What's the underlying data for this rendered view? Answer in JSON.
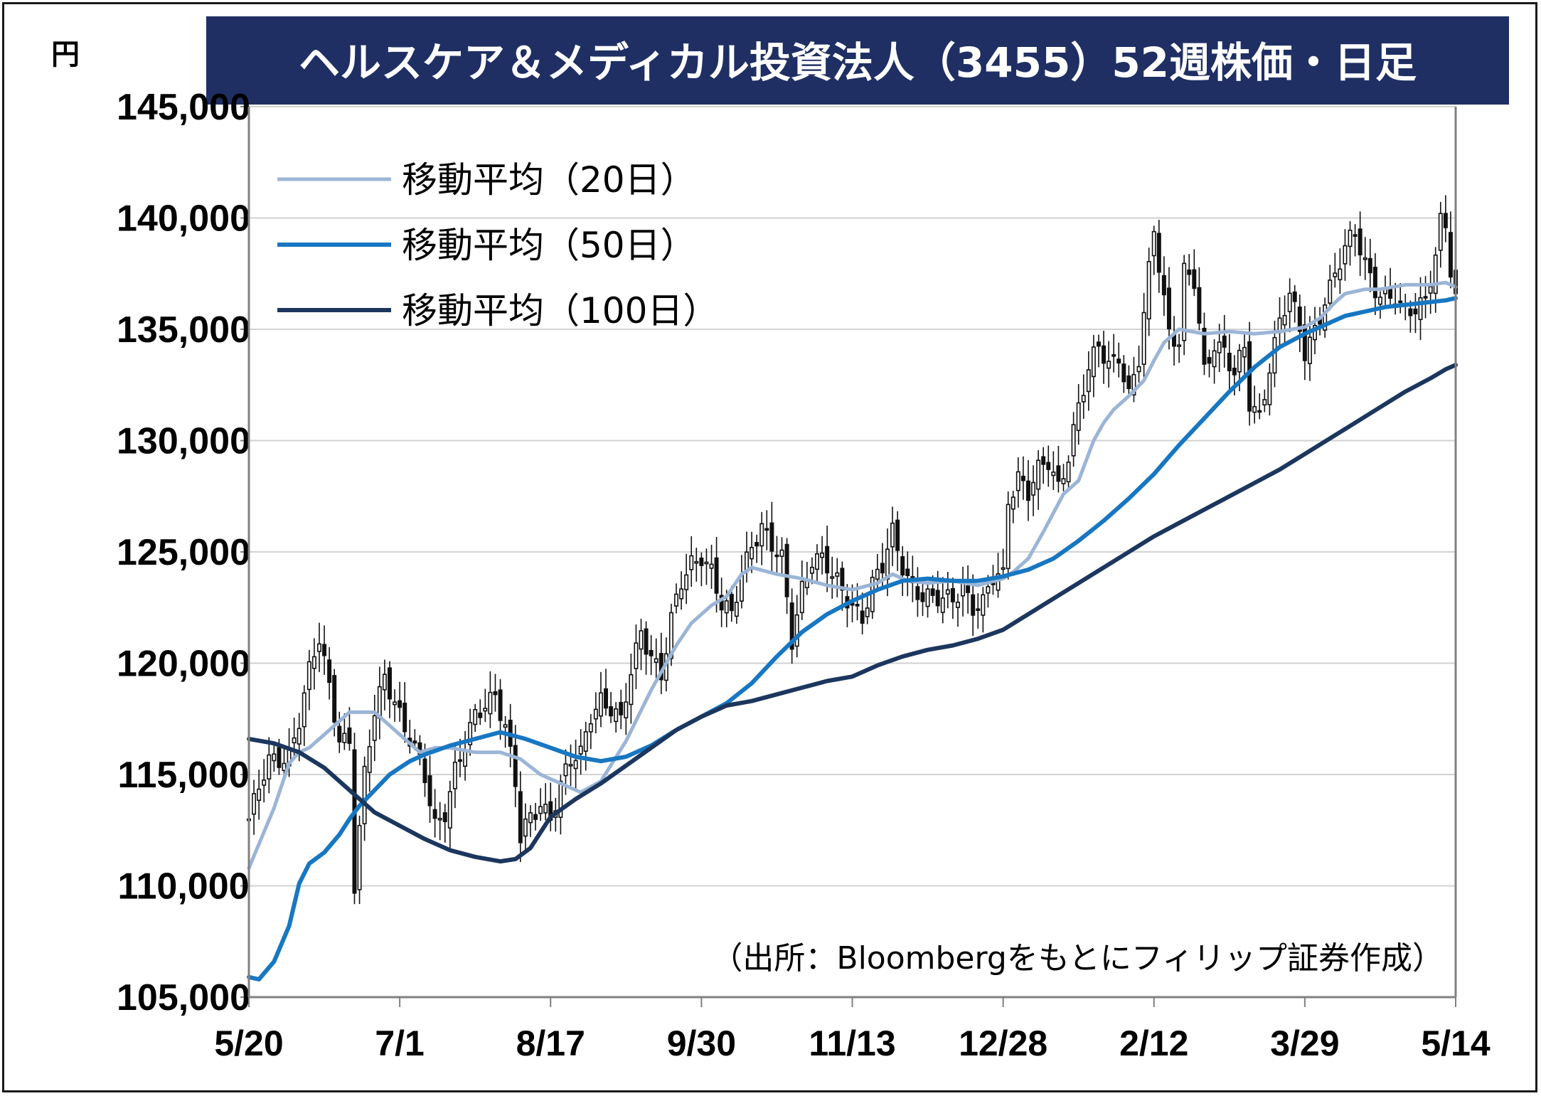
{
  "chart_data": {
    "type": "line",
    "title": "ヘルスケア＆メディカル投資法人（3455）52週株価・日足",
    "y_unit": "円",
    "ylim": [
      105000,
      145000
    ],
    "yticks": [
      {
        "v": 145000,
        "label": "145,000"
      },
      {
        "v": 140000,
        "label": "140,000"
      },
      {
        "v": 135000,
        "label": "135,000"
      },
      {
        "v": 130000,
        "label": "130,000"
      },
      {
        "v": 125000,
        "label": "125,000"
      },
      {
        "v": 120000,
        "label": "120,000"
      },
      {
        "v": 115000,
        "label": "115,000"
      },
      {
        "v": 110000,
        "label": "110,000"
      },
      {
        "v": 105000,
        "label": "105,000"
      }
    ],
    "x_count": 240,
    "xticks": [
      {
        "i": 0,
        "label": "5/20"
      },
      {
        "i": 30,
        "label": "7/1"
      },
      {
        "i": 60,
        "label": "8/17"
      },
      {
        "i": 90,
        "label": "9/30"
      },
      {
        "i": 120,
        "label": "11/13"
      },
      {
        "i": 150,
        "label": "12/28"
      },
      {
        "i": 180,
        "label": "2/12"
      },
      {
        "i": 210,
        "label": "3/29"
      },
      {
        "i": 240,
        "label": "5/14"
      }
    ],
    "grid": true,
    "legend_position": "top-left",
    "source": "（出所：Bloombergをもとにフィリップ証券作成）",
    "price_keypoints": [
      [
        0,
        113000
      ],
      [
        4,
        115500
      ],
      [
        8,
        116000
      ],
      [
        10,
        117500
      ],
      [
        12,
        119500
      ],
      [
        14,
        121000
      ],
      [
        16,
        119000
      ],
      [
        18,
        116800
      ],
      [
        20,
        116500
      ],
      [
        21,
        110000
      ],
      [
        23,
        114800
      ],
      [
        25,
        117800
      ],
      [
        27,
        119500
      ],
      [
        29,
        118500
      ],
      [
        31,
        117000
      ],
      [
        33,
        116000
      ],
      [
        35,
        114800
      ],
      [
        37,
        112800
      ],
      [
        39,
        113500
      ],
      [
        41,
        115200
      ],
      [
        43,
        116200
      ],
      [
        45,
        117500
      ],
      [
        47,
        118200
      ],
      [
        49,
        118800
      ],
      [
        51,
        117200
      ],
      [
        53,
        114500
      ],
      [
        54,
        112000
      ],
      [
        56,
        113000
      ],
      [
        58,
        113800
      ],
      [
        60,
        113200
      ],
      [
        62,
        114500
      ],
      [
        64,
        115500
      ],
      [
        66,
        115800
      ],
      [
        68,
        117800
      ],
      [
        70,
        118500
      ],
      [
        72,
        118000
      ],
      [
        74,
        117200
      ],
      [
        76,
        119500
      ],
      [
        78,
        121500
      ],
      [
        80,
        120500
      ],
      [
        82,
        119500
      ],
      [
        84,
        121800
      ],
      [
        86,
        123500
      ],
      [
        88,
        124500
      ],
      [
        90,
        125000
      ],
      [
        92,
        124200
      ],
      [
        94,
        122500
      ],
      [
        96,
        122000
      ],
      [
        98,
        124000
      ],
      [
        100,
        125500
      ],
      [
        102,
        126200
      ],
      [
        104,
        125200
      ],
      [
        106,
        124500
      ],
      [
        108,
        121000
      ],
      [
        110,
        123500
      ],
      [
        112,
        124800
      ],
      [
        114,
        124600
      ],
      [
        116,
        123800
      ],
      [
        118,
        123200
      ],
      [
        120,
        122700
      ],
      [
        122,
        122200
      ],
      [
        124,
        123500
      ],
      [
        126,
        124200
      ],
      [
        128,
        125800
      ],
      [
        130,
        124500
      ],
      [
        132,
        123500
      ],
      [
        134,
        123000
      ],
      [
        136,
        122700
      ],
      [
        138,
        122800
      ],
      [
        140,
        123000
      ],
      [
        142,
        123600
      ],
      [
        144,
        122500
      ],
      [
        146,
        122500
      ],
      [
        148,
        123800
      ],
      [
        150,
        124000
      ],
      [
        151,
        127500
      ],
      [
        153,
        128500
      ],
      [
        155,
        127600
      ],
      [
        157,
        128500
      ],
      [
        159,
        129000
      ],
      [
        161,
        128000
      ],
      [
        163,
        129500
      ],
      [
        165,
        131500
      ],
      [
        167,
        133000
      ],
      [
        169,
        134200
      ],
      [
        171,
        133500
      ],
      [
        173,
        134000
      ],
      [
        175,
        132000
      ],
      [
        177,
        133500
      ],
      [
        179,
        137500
      ],
      [
        180,
        139500
      ],
      [
        181,
        138000
      ],
      [
        183,
        135000
      ],
      [
        185,
        134500
      ],
      [
        186,
        137500
      ],
      [
        188,
        137000
      ],
      [
        190,
        133000
      ],
      [
        192,
        134500
      ],
      [
        194,
        134200
      ],
      [
        196,
        133000
      ],
      [
        198,
        134000
      ],
      [
        199,
        131500
      ],
      [
        201,
        131000
      ],
      [
        203,
        133500
      ],
      [
        205,
        135500
      ],
      [
        207,
        136500
      ],
      [
        209,
        134800
      ],
      [
        210,
        133800
      ],
      [
        212,
        135000
      ],
      [
        214,
        136500
      ],
      [
        216,
        137500
      ],
      [
        218,
        138500
      ],
      [
        220,
        139200
      ],
      [
        222,
        138000
      ],
      [
        224,
        137000
      ],
      [
        226,
        136500
      ],
      [
        228,
        136200
      ],
      [
        230,
        135500
      ],
      [
        232,
        136000
      ],
      [
        234,
        136500
      ],
      [
        236,
        138500
      ],
      [
        237,
        139800
      ],
      [
        238,
        139500
      ],
      [
        239,
        137500
      ],
      [
        240,
        136200
      ]
    ],
    "series": [
      {
        "name": "移動平均（20日）",
        "color": "#9bb5d6",
        "width": 5,
        "period": 20,
        "points": [
          [
            0,
            110800
          ],
          [
            5,
            113500
          ],
          [
            8,
            115500
          ],
          [
            10,
            116000
          ],
          [
            12,
            116200
          ],
          [
            15,
            116800
          ],
          [
            20,
            117800
          ],
          [
            25,
            117800
          ],
          [
            30,
            116800
          ],
          [
            34,
            116000
          ],
          [
            37,
            116200
          ],
          [
            40,
            116200
          ],
          [
            45,
            116000
          ],
          [
            50,
            116000
          ],
          [
            54,
            115700
          ],
          [
            58,
            115000
          ],
          [
            62,
            114600
          ],
          [
            66,
            114200
          ],
          [
            70,
            114700
          ],
          [
            75,
            116500
          ],
          [
            80,
            118800
          ],
          [
            85,
            120800
          ],
          [
            88,
            121800
          ],
          [
            90,
            122200
          ],
          [
            92,
            122600
          ],
          [
            95,
            123000
          ],
          [
            98,
            124000
          ],
          [
            100,
            124300
          ],
          [
            105,
            124000
          ],
          [
            110,
            123800
          ],
          [
            115,
            123500
          ],
          [
            120,
            123300
          ],
          [
            125,
            123600
          ],
          [
            128,
            124000
          ],
          [
            131,
            123700
          ],
          [
            135,
            123600
          ],
          [
            140,
            123700
          ],
          [
            145,
            123500
          ],
          [
            150,
            123800
          ],
          [
            152,
            124100
          ],
          [
            155,
            124700
          ],
          [
            158,
            125900
          ],
          [
            162,
            127600
          ],
          [
            165,
            128200
          ],
          [
            168,
            130000
          ],
          [
            170,
            130800
          ],
          [
            172,
            131400
          ],
          [
            175,
            132000
          ],
          [
            178,
            132700
          ],
          [
            180,
            133600
          ],
          [
            182,
            134400
          ],
          [
            185,
            135000
          ],
          [
            190,
            134800
          ],
          [
            195,
            134900
          ],
          [
            200,
            134800
          ],
          [
            205,
            134900
          ],
          [
            210,
            135100
          ],
          [
            213,
            135500
          ],
          [
            216,
            136200
          ],
          [
            218,
            136600
          ],
          [
            222,
            136800
          ],
          [
            225,
            136800
          ],
          [
            230,
            137000
          ],
          [
            235,
            137000
          ],
          [
            238,
            137100
          ],
          [
            240,
            136900
          ]
        ]
      },
      {
        "name": "移動平均（50日）",
        "color": "#1777c2",
        "width": 6,
        "period": 50,
        "points": [
          [
            0,
            105900
          ],
          [
            2,
            105800
          ],
          [
            5,
            106600
          ],
          [
            8,
            108200
          ],
          [
            10,
            110100
          ],
          [
            12,
            111000
          ],
          [
            15,
            111500
          ],
          [
            18,
            112300
          ],
          [
            20,
            113000
          ],
          [
            22,
            113600
          ],
          [
            25,
            114300
          ],
          [
            28,
            115000
          ],
          [
            30,
            115300
          ],
          [
            32,
            115600
          ],
          [
            35,
            115900
          ],
          [
            40,
            116300
          ],
          [
            45,
            116600
          ],
          [
            50,
            116900
          ],
          [
            55,
            116600
          ],
          [
            60,
            116200
          ],
          [
            65,
            115800
          ],
          [
            70,
            115600
          ],
          [
            75,
            115800
          ],
          [
            80,
            116300
          ],
          [
            85,
            117000
          ],
          [
            90,
            117600
          ],
          [
            95,
            118200
          ],
          [
            100,
            119100
          ],
          [
            105,
            120300
          ],
          [
            110,
            121400
          ],
          [
            115,
            122200
          ],
          [
            120,
            122800
          ],
          [
            125,
            123300
          ],
          [
            130,
            123700
          ],
          [
            135,
            123800
          ],
          [
            140,
            123700
          ],
          [
            145,
            123700
          ],
          [
            150,
            123900
          ],
          [
            155,
            124200
          ],
          [
            160,
            124700
          ],
          [
            165,
            125500
          ],
          [
            170,
            126400
          ],
          [
            175,
            127400
          ],
          [
            180,
            128500
          ],
          [
            185,
            129800
          ],
          [
            190,
            131000
          ],
          [
            195,
            132200
          ],
          [
            200,
            133300
          ],
          [
            205,
            134200
          ],
          [
            210,
            134800
          ],
          [
            213,
            135100
          ],
          [
            215,
            135300
          ],
          [
            218,
            135600
          ],
          [
            222,
            135800
          ],
          [
            226,
            136000
          ],
          [
            230,
            136100
          ],
          [
            234,
            136200
          ],
          [
            238,
            136300
          ],
          [
            240,
            136400
          ]
        ]
      },
      {
        "name": "移動平均（100日）",
        "color": "#1c365e",
        "width": 6,
        "period": 100,
        "points": [
          [
            0,
            116600
          ],
          [
            5,
            116400
          ],
          [
            10,
            116000
          ],
          [
            15,
            115300
          ],
          [
            20,
            114300
          ],
          [
            25,
            113300
          ],
          [
            30,
            112700
          ],
          [
            35,
            112100
          ],
          [
            40,
            111600
          ],
          [
            45,
            111300
          ],
          [
            50,
            111100
          ],
          [
            53,
            111200
          ],
          [
            56,
            111700
          ],
          [
            58,
            112400
          ],
          [
            60,
            113100
          ],
          [
            65,
            113900
          ],
          [
            70,
            114600
          ],
          [
            75,
            115400
          ],
          [
            80,
            116200
          ],
          [
            85,
            117000
          ],
          [
            90,
            117600
          ],
          [
            95,
            118100
          ],
          [
            100,
            118300
          ],
          [
            105,
            118600
          ],
          [
            110,
            118900
          ],
          [
            115,
            119200
          ],
          [
            120,
            119400
          ],
          [
            125,
            119900
          ],
          [
            130,
            120300
          ],
          [
            135,
            120600
          ],
          [
            140,
            120800
          ],
          [
            145,
            121100
          ],
          [
            150,
            121500
          ],
          [
            155,
            122200
          ],
          [
            160,
            122900
          ],
          [
            165,
            123600
          ],
          [
            170,
            124300
          ],
          [
            175,
            125000
          ],
          [
            180,
            125700
          ],
          [
            185,
            126300
          ],
          [
            190,
            126900
          ],
          [
            195,
            127500
          ],
          [
            200,
            128100
          ],
          [
            205,
            128700
          ],
          [
            210,
            129400
          ],
          [
            215,
            130100
          ],
          [
            220,
            130800
          ],
          [
            225,
            131500
          ],
          [
            230,
            132200
          ],
          [
            235,
            132800
          ],
          [
            238,
            133200
          ],
          [
            240,
            133400
          ]
        ]
      }
    ]
  }
}
